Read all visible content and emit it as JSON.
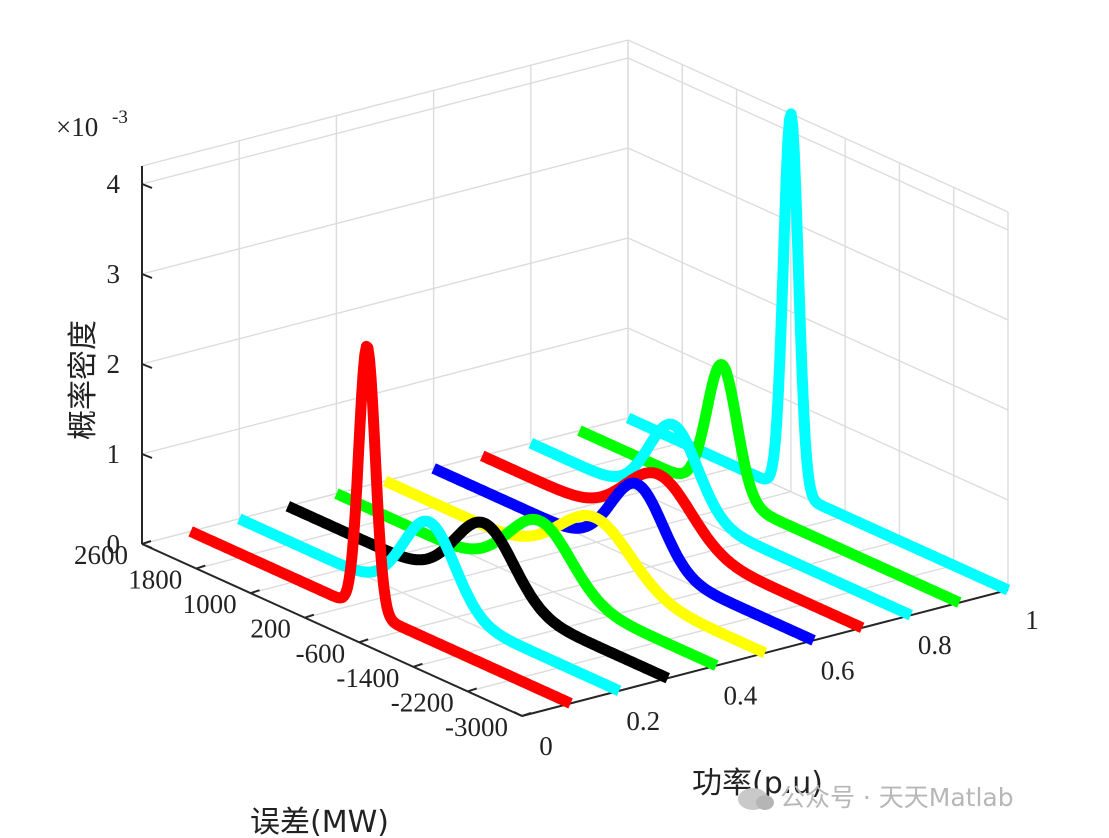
{
  "chart_data": {
    "type": "line",
    "view": "3d-ridgeline",
    "grid": true,
    "x_axis": {
      "label": "误差(MW)",
      "ticks": [
        "2600",
        "1800",
        "1000",
        "200",
        "-600",
        "-1400",
        "-2200",
        "-3000"
      ],
      "range": [
        -3000,
        2600
      ]
    },
    "y_axis": {
      "label": "功率(p.u)",
      "ticks": [
        "0",
        "0.2",
        "0.4",
        "0.6",
        "0.8",
        "1"
      ],
      "range": [
        0,
        1
      ]
    },
    "z_axis": {
      "label": "概率密度",
      "ticks": [
        "0",
        "1",
        "2",
        "3",
        "4"
      ],
      "exponent_label": "×10",
      "exponent": "-3",
      "range": [
        0,
        4.2
      ]
    },
    "series": [
      {
        "power": 0.1,
        "color": "#ff0000",
        "mean_mw": 0,
        "std_mw": 120,
        "peak": 2.95
      },
      {
        "power": 0.2,
        "color": "#00ffff",
        "mean_mw": -200,
        "std_mw": 380,
        "peak": 0.92
      },
      {
        "power": 0.3,
        "color": "#000000",
        "mean_mw": -300,
        "std_mw": 430,
        "peak": 0.8
      },
      {
        "power": 0.4,
        "color": "#00ff00",
        "mean_mw": -400,
        "std_mw": 460,
        "peak": 0.72
      },
      {
        "power": 0.5,
        "color": "#ffff00",
        "mean_mw": -500,
        "std_mw": 520,
        "peak": 0.65
      },
      {
        "power": 0.6,
        "color": "#0000ff",
        "mean_mw": -400,
        "std_mw": 380,
        "peak": 0.85
      },
      {
        "power": 0.7,
        "color": "#ff0000",
        "mean_mw": 0,
        "std_mw": 480,
        "peak": 0.68
      },
      {
        "power": 0.8,
        "color": "#00ffff",
        "mean_mw": 500,
        "std_mw": 360,
        "peak": 0.92
      },
      {
        "power": 0.9,
        "color": "#00ff00",
        "mean_mw": 500,
        "std_mw": 220,
        "peak": 1.45
      },
      {
        "power": 1.0,
        "color": "#00ffff",
        "mean_mw": 200,
        "std_mw": 110,
        "peak": 4.2
      }
    ]
  },
  "watermark": {
    "text": "公众号 · 天天Matlab"
  }
}
